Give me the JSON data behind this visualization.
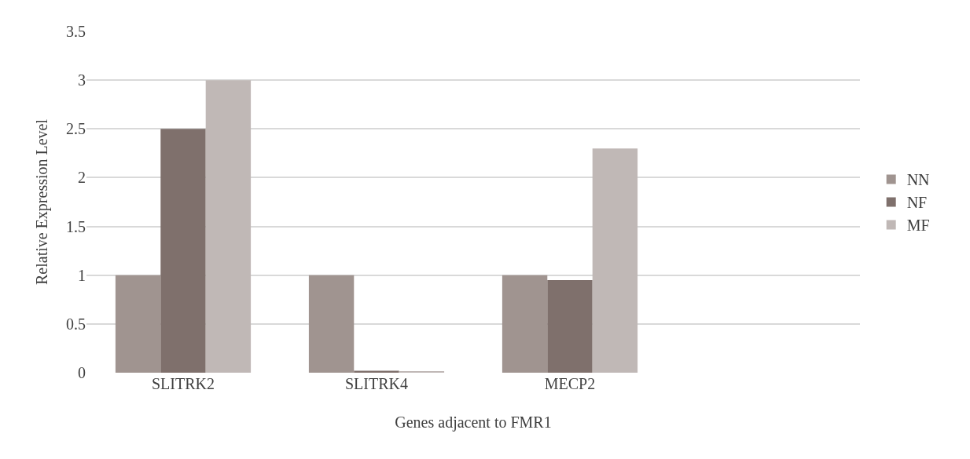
{
  "chart_data": {
    "type": "bar",
    "xlabel": "Genes adjacent to FMR1",
    "ylabel": "Relative Expression Level",
    "categories": [
      "SLITRK2",
      "SLITRK4",
      "MECP2"
    ],
    "series": [
      {
        "name": "NN",
        "color": "#a09490",
        "values": [
          1,
          1,
          1
        ]
      },
      {
        "name": "NF",
        "color": "#7f706c",
        "values": [
          2.5,
          0.02,
          0.95
        ]
      },
      {
        "name": "MF",
        "color": "#c0b8b6",
        "values": [
          3,
          0.01,
          2.3
        ]
      }
    ],
    "ylim": [
      0,
      3.5
    ],
    "yticks": [
      0,
      0.5,
      1,
      1.5,
      2,
      2.5,
      3,
      3.5
    ],
    "grid": "y",
    "legend": "right"
  }
}
